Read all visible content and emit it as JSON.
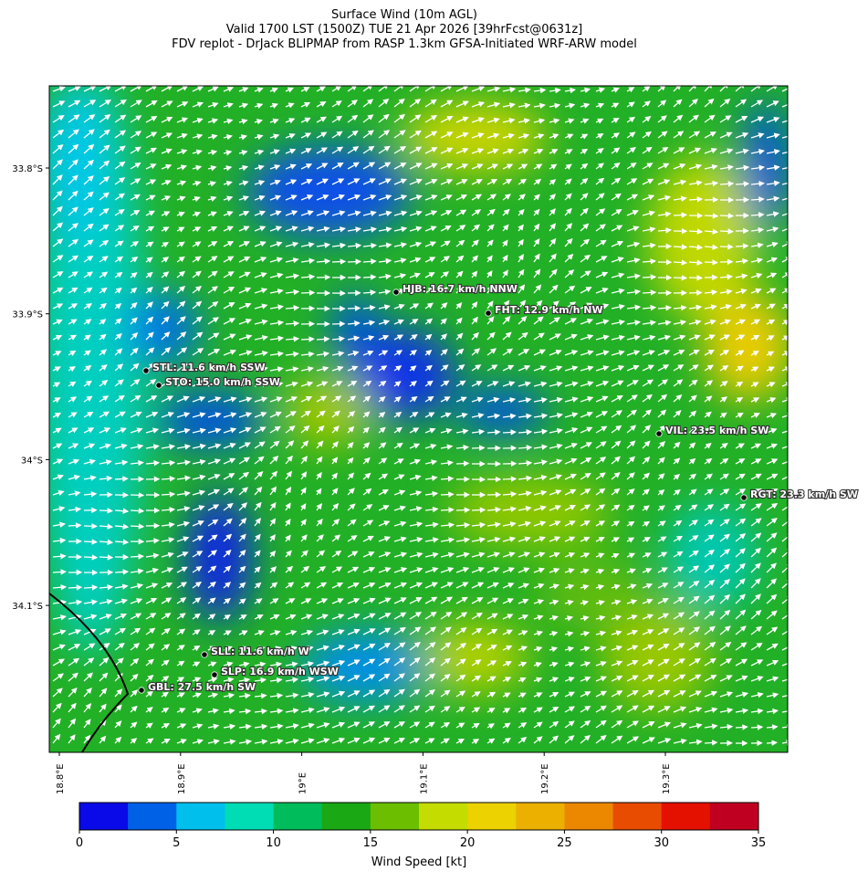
{
  "header": {
    "lines": [
      "Surface Wind (10m AGL)",
      "Valid 1700 LST (1500Z) TUE 21 Apr 2026 [39hrFcst@0631z]",
      "FDV replot - DrJack BLIPMAP from RASP 1.3km GFSA-Initiated WRF-ARW model"
    ]
  },
  "map": {
    "x_ticks": [
      "18.8°E",
      "18.9°E",
      "19°E",
      "19.1°E",
      "19.2°E",
      "19.3°E"
    ],
    "y_ticks": [
      "33.8°S",
      "33.9°S",
      "34°S",
      "34.1°S"
    ],
    "stations": [
      "HJB: 16.7 km/h NNW",
      "FHT: 12.9 km/h NW",
      "STL: 11.6 km/h SSW",
      "STO: 15.0 km/h SSW",
      "VIL: 23.5 km/h SW",
      "RGT: 23.3 km/h SW",
      "SLL: 11.6 km/h W",
      "SLP: 16.9 km/h WSW",
      "GBL: 27.5 km/h SW"
    ]
  },
  "colorbar": {
    "label": "Wind Speed [kt]",
    "ticks": [
      0,
      5,
      10,
      15,
      20,
      25,
      30,
      35
    ],
    "lim": [
      0,
      35
    ],
    "colors": [
      "#0a0ae8",
      "#0060e6",
      "#00bfec",
      "#00dcb4",
      "#00bc5a",
      "#1aa814",
      "#6cbe00",
      "#c4dc00",
      "#ecd200",
      "#ecb000",
      "#ec8800",
      "#e84c00",
      "#e41000",
      "#c00020"
    ]
  }
}
